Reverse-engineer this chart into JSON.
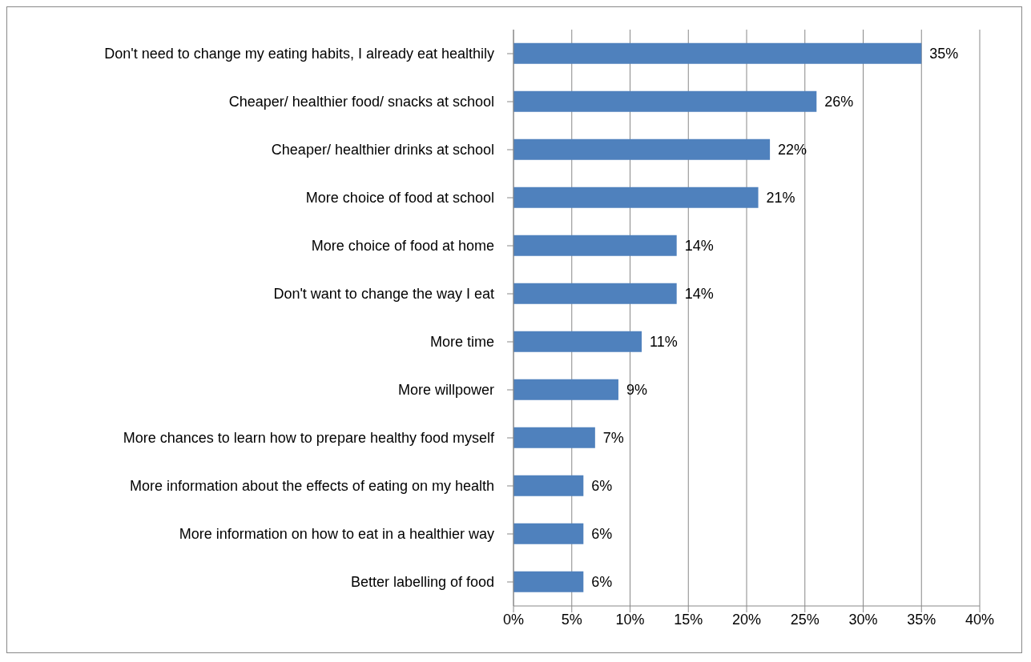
{
  "chart_data": {
    "type": "bar",
    "orientation": "horizontal",
    "categories": [
      "Don't need to change my eating habits, I already eat healthily",
      "Cheaper/ healthier food/ snacks at school",
      "Cheaper/ healthier drinks at school",
      "More choice of food at school",
      "More choice of food at home",
      "Don't want to change the way I eat",
      "More time",
      "More willpower",
      "More chances to learn how to prepare healthy food myself",
      "More information about the effects of eating on my health",
      "More information on how to eat in a healthier way",
      "Better labelling of food"
    ],
    "values": [
      35,
      26,
      22,
      21,
      14,
      14,
      11,
      9,
      7,
      6,
      6,
      6
    ],
    "value_labels": [
      "35%",
      "26%",
      "22%",
      "21%",
      "14%",
      "14%",
      "11%",
      "9%",
      "7%",
      "6%",
      "6%",
      "6%"
    ],
    "color": "#4f81bd",
    "xlim": [
      0,
      40
    ],
    "xticks": [
      {
        "value": 0,
        "label": "0%"
      },
      {
        "value": 5,
        "label": "5%"
      },
      {
        "value": 10,
        "label": "10%"
      },
      {
        "value": 15,
        "label": "15%"
      },
      {
        "value": 20,
        "label": "20%"
      },
      {
        "value": 25,
        "label": "25%"
      },
      {
        "value": 30,
        "label": "30%"
      },
      {
        "value": 35,
        "label": "35%"
      },
      {
        "value": 40,
        "label": "40%"
      }
    ],
    "grid": "x"
  }
}
